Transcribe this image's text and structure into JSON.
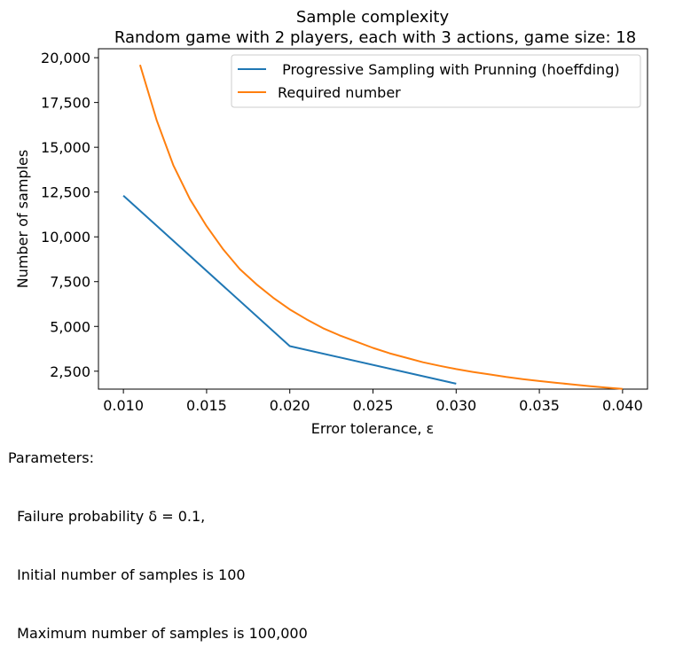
{
  "chart_data": {
    "type": "line",
    "title": "Sample complexity",
    "subtitle": "Random game with 2 players, each with 3 actions, game size: 18",
    "xlabel": "Error tolerance, ε",
    "ylabel": "Number of samples",
    "xlim": [
      0.0085,
      0.0415
    ],
    "ylim": [
      1500,
      20500
    ],
    "xticks": [
      0.01,
      0.015,
      0.02,
      0.025,
      0.03,
      0.035,
      0.04
    ],
    "xtick_labels": [
      "0.010",
      "0.015",
      "0.020",
      "0.025",
      "0.030",
      "0.035",
      "0.040"
    ],
    "yticks": [
      2500,
      5000,
      7500,
      10000,
      12500,
      15000,
      17500,
      20000
    ],
    "ytick_labels": [
      "2,500",
      "5,000",
      "7,500",
      "10,000",
      "12,500",
      "15,000",
      "17,500",
      "20,000"
    ],
    "grid": false,
    "legend_position": "top-right",
    "series": [
      {
        "name": " Progressive Sampling with Prunning (hoeffding)",
        "color": "#1f77b4",
        "x": [
          0.01,
          0.02,
          0.03
        ],
        "y": [
          12300,
          3900,
          1800
        ]
      },
      {
        "name": "Required number",
        "color": "#ff7f0e",
        "x": [
          0.011,
          0.012,
          0.013,
          0.014,
          0.015,
          0.016,
          0.017,
          0.018,
          0.019,
          0.02,
          0.021,
          0.022,
          0.023,
          0.024,
          0.025,
          0.026,
          0.027,
          0.028,
          0.029,
          0.03,
          0.031,
          0.032,
          0.033,
          0.034,
          0.035,
          0.036,
          0.037,
          0.038,
          0.039,
          0.04
        ],
        "y": [
          19600,
          16500,
          14000,
          12100,
          10600,
          9300,
          8200,
          7350,
          6600,
          5950,
          5400,
          4900,
          4500,
          4150,
          3800,
          3500,
          3250,
          3000,
          2800,
          2620,
          2460,
          2320,
          2180,
          2060,
          1950,
          1850,
          1760,
          1670,
          1590,
          1510
        ]
      }
    ]
  },
  "parameters": {
    "heading": "Parameters:",
    "lines": [
      "  Failure probability δ = 0.1,",
      "  Initial number of samples is 100",
      "  Maximum number of samples is 100,000"
    ]
  }
}
